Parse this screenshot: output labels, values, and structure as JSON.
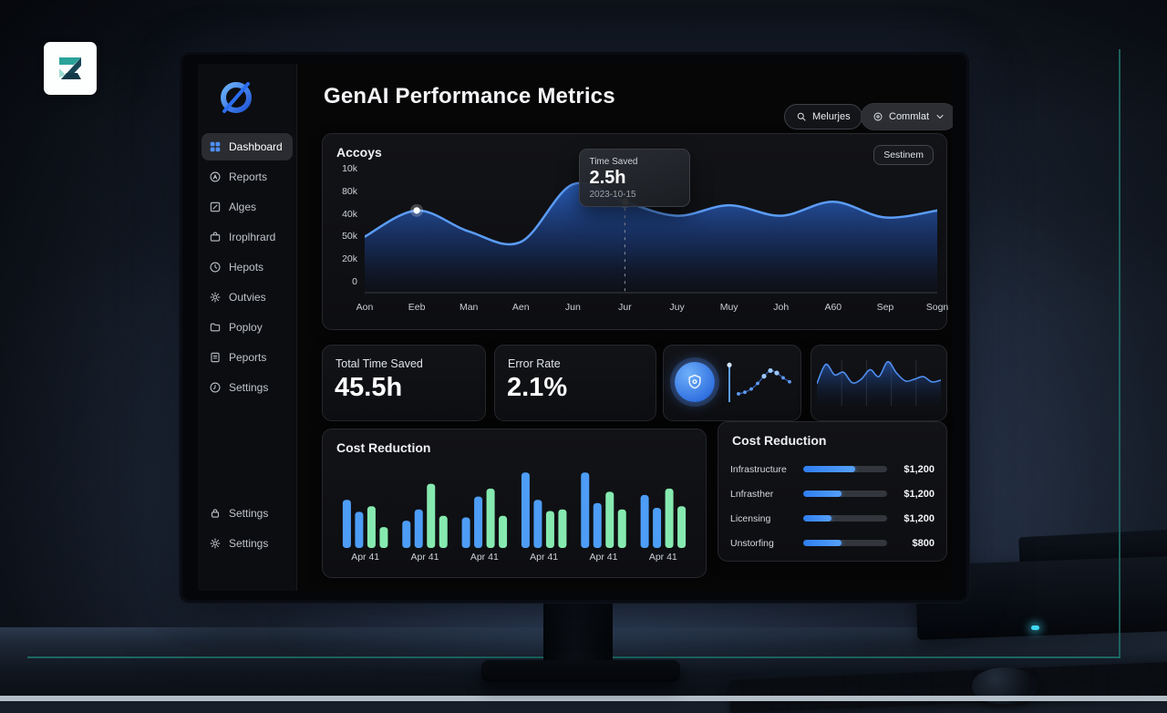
{
  "scene": {
    "wall_logo_letter": "Z",
    "accent_line_color": "#1e6f68",
    "led_color": "#3fd6f2"
  },
  "app": {
    "header": {
      "title": "GenAI Performance Metrics",
      "search_label": "Melurjes",
      "dropdown_label": "Commlat"
    },
    "sidebar": {
      "items": [
        {
          "label": "Dashboard",
          "icon": "dashboard-grid",
          "active": true
        },
        {
          "label": "Reports",
          "icon": "report-circle",
          "active": false
        },
        {
          "label": "Alges",
          "icon": "edit-square",
          "active": false
        },
        {
          "label": "Iroplhrard",
          "icon": "briefcase",
          "active": false
        },
        {
          "label": "Hepots",
          "icon": "clock",
          "active": false
        },
        {
          "label": "Outvies",
          "icon": "gear",
          "active": false
        },
        {
          "label": "Poploy",
          "icon": "folder",
          "active": false
        },
        {
          "label": "Peports",
          "icon": "document",
          "active": false
        },
        {
          "label": "Settings",
          "icon": "history",
          "active": false
        }
      ],
      "footer_items": [
        {
          "label": "Settings",
          "icon": "lock",
          "active": false
        },
        {
          "label": "Settings",
          "icon": "gear",
          "active": false
        }
      ]
    }
  },
  "stats": [
    {
      "label": "Total Time Saved",
      "value": "45.5h"
    },
    {
      "label": "Error Rate",
      "value": "2.1%"
    }
  ],
  "chart_data": [
    {
      "id": "accoys-area-chart",
      "type": "area",
      "title": "Accoys",
      "badge": "Sestinem",
      "categories": [
        "Aon",
        "Eeb",
        "Man",
        "Aen",
        "Jun",
        "Jur",
        "Juy",
        "Muy",
        "Joh",
        "A60",
        "Sep",
        "Sogn"
      ],
      "values": [
        30,
        45,
        33,
        27,
        60,
        50,
        42,
        48,
        42,
        50,
        41,
        45
      ],
      "y_ticks": [
        "10k",
        "80k",
        "40k",
        "50k",
        "20k",
        "0"
      ],
      "ylim": [
        0,
        70
      ],
      "markers": [
        1,
        5
      ],
      "tooltip": {
        "label": "Time Saved",
        "value": "2.5h",
        "date": "2023-10-15",
        "index": 5
      },
      "line_color": "#5b9cf6"
    },
    {
      "id": "cost-reduction-bars",
      "type": "bar",
      "title": "Cost Reduction",
      "group_label": "Apr 41",
      "bar_colors": [
        "#4d9df6",
        "#4d9df6",
        "#86eab0",
        "#86eab0"
      ],
      "groups": [
        [
          60,
          45,
          52,
          26
        ],
        [
          34,
          48,
          80,
          40
        ],
        [
          38,
          64,
          74,
          40
        ],
        [
          94,
          60,
          46,
          48
        ],
        [
          94,
          56,
          70,
          48
        ],
        [
          66,
          50,
          74,
          52
        ]
      ],
      "ylim": [
        0,
        100
      ]
    },
    {
      "id": "cost-reduction-list",
      "type": "table",
      "title": "Cost Reduction",
      "rows": [
        {
          "label": "Infrastructure",
          "value": "$1,200",
          "pct": 62
        },
        {
          "label": "Lnfrasther",
          "value": "$1,200",
          "pct": 46
        },
        {
          "label": "Licensing",
          "value": "$1,200",
          "pct": 34
        },
        {
          "label": "Unstorfing",
          "value": "$800",
          "pct": 46
        }
      ]
    },
    {
      "id": "stat-sparkline-dots",
      "type": "scatter",
      "spike_value": 88,
      "values": [
        16,
        20,
        28,
        42,
        60,
        74,
        68,
        56,
        46
      ],
      "ylim": [
        0,
        100
      ]
    },
    {
      "id": "stat-sparkline-area",
      "type": "area",
      "values": [
        38,
        82,
        58,
        64,
        40,
        48,
        70,
        54,
        88,
        62,
        44,
        48,
        54,
        42,
        46
      ],
      "ylim": [
        0,
        100
      ]
    }
  ]
}
